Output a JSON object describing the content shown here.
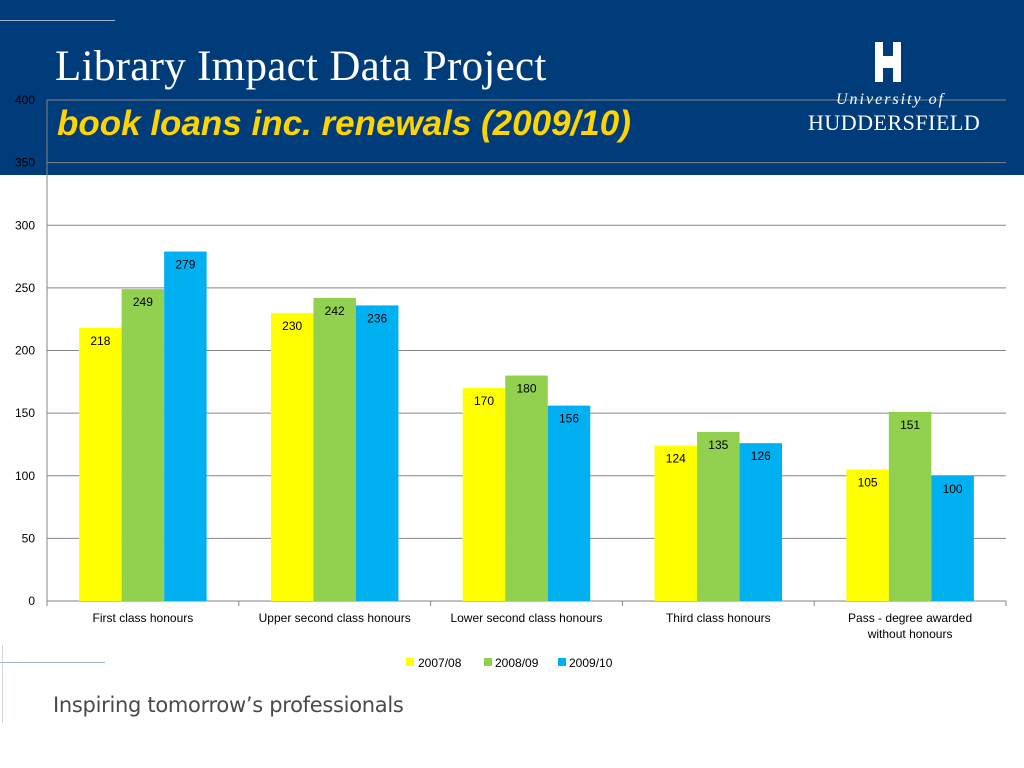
{
  "slide": {
    "title": "Library Impact Data Project",
    "subtitle": "book loans inc. renewals (2009/10)",
    "tagline": "Inspiring tomorrow’s professionals"
  },
  "logo": {
    "line1": "University of",
    "line2": "HUDDERSFIELD"
  },
  "colors": {
    "header_band": "#003b7a",
    "subtitle": "#ffd400"
  },
  "chart_data": {
    "type": "bar",
    "title": "",
    "xlabel": "",
    "ylabel": "",
    "ylim": [
      0,
      400
    ],
    "y_ticks": [
      0,
      50,
      100,
      150,
      200,
      250,
      300,
      350,
      400
    ],
    "grid": true,
    "legend_position": "bottom",
    "categories": [
      [
        "First class honours"
      ],
      [
        "Upper second class honours"
      ],
      [
        "Lower second class honours"
      ],
      [
        "Third class honours"
      ],
      [
        "Pass - degree awarded",
        "without honours"
      ]
    ],
    "series": [
      {
        "name": "2007/08",
        "color": "#ffff00",
        "values": [
          218,
          230,
          170,
          124,
          105
        ]
      },
      {
        "name": "2008/09",
        "color": "#92d050",
        "values": [
          249,
          242,
          180,
          135,
          151
        ]
      },
      {
        "name": "2009/10",
        "color": "#00b0f0",
        "values": [
          279,
          236,
          156,
          126,
          100
        ]
      }
    ]
  }
}
